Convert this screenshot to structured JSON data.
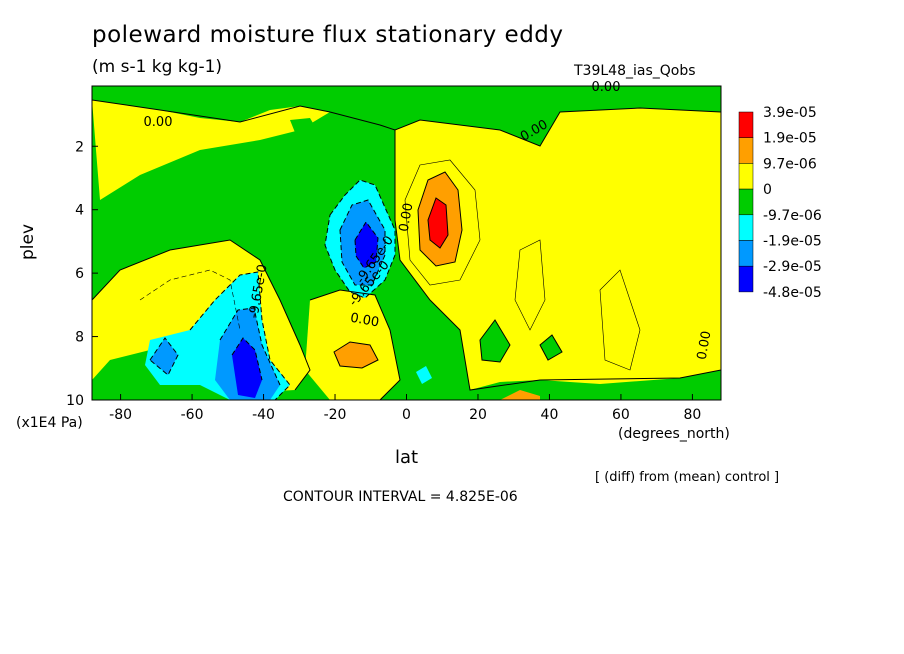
{
  "chart_data": {
    "type": "heatmap",
    "title": "poleward moisture flux stationary eddy",
    "units": "(m s-1 kg kg-1)",
    "run_name": "T39L48_ias_Qobs",
    "xlabel": "lat",
    "x_units": "(degrees_north)",
    "ylabel": "plev",
    "y_units": "(x1E4 Pa)",
    "xlim": [
      -88,
      88
    ],
    "ylim": [
      10,
      0.1
    ],
    "x_ticks": [
      "-80",
      "-60",
      "-40",
      "-20",
      "0",
      "20",
      "40",
      "60",
      "80"
    ],
    "x_tick_values": [
      -80,
      -60,
      -40,
      -20,
      0,
      20,
      40,
      60,
      80
    ],
    "y_ticks": [
      "2",
      "4",
      "6",
      "8",
      "10"
    ],
    "y_tick_values": [
      2,
      4,
      6,
      8,
      10
    ],
    "colorbar": {
      "labels": [
        "3.9e-05",
        "1.9e-05",
        "9.7e-06",
        "0",
        "-9.7e-06",
        "-1.9e-05",
        "-2.9e-05",
        "-4.8e-05"
      ],
      "colors": [
        "#ff0000",
        "#ff9f00",
        "#ffff00",
        "#00cc00",
        "#00ffff",
        "#0099ff",
        "#0000ff"
      ]
    },
    "contour_labels": [
      "0.00",
      "0.00",
      "0.00",
      "0.00",
      "0.00",
      "0.00",
      "-9.65e-0",
      "-9.65e-0",
      "-9.65e-0"
    ],
    "diff_note": "[ (diff) from (mean) control ]",
    "contour_interval": "CONTOUR INTERVAL = 4.825E-06",
    "field": {
      "description_units": "m s-1 kg kg-1",
      "features": [
        {
          "lat": 8,
          "plev": 4.5,
          "value": 4e-05
        },
        {
          "lat": -12,
          "plev": 5.0,
          "value": -4.8e-05
        },
        {
          "lat": -42,
          "plev": 9.3,
          "value": -4e-05
        },
        {
          "lat": -14,
          "plev": 8.6,
          "value": 1.2e-05
        },
        {
          "lat": 33,
          "plev": 9.9,
          "value": 1.2e-05
        }
      ]
    }
  }
}
